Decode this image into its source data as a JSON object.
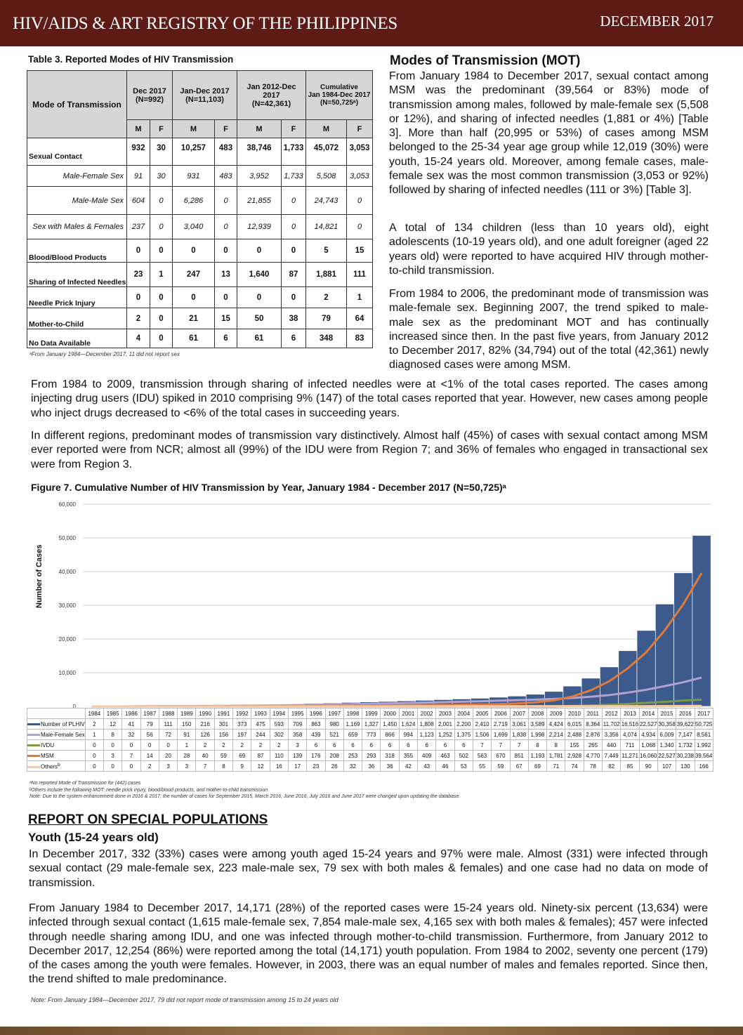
{
  "header": {
    "title": "HIV/AIDS & ART REGISTRY OF THE PHILIPPINES",
    "date": "DECEMBER 2017"
  },
  "table3": {
    "caption": "Table 3. Reported Modes of HIV Transmission",
    "col_header": "Mode of Transmission",
    "groups": [
      {
        "l1": "Dec 2017",
        "l2": "(N=992)"
      },
      {
        "l1": "Jan-Dec 2017",
        "l2": "(N=11,103)"
      },
      {
        "l1": "Jan 2012-Dec 2017",
        "l2": "(N=42,361)"
      },
      {
        "l0": "Cumulative",
        "l1": "Jan 1984-Dec 2017",
        "l2": "(N=50,725ᵃ)"
      }
    ],
    "m": "M",
    "f": "F",
    "rows": [
      {
        "label": "Sexual Contact",
        "bold": true,
        "v": [
          "932",
          "30",
          "10,257",
          "483",
          "38,746",
          "1,733",
          "45,072",
          "3,053"
        ]
      },
      {
        "label": "Male-Female Sex",
        "sub": true,
        "v": [
          "91",
          "30",
          "931",
          "483",
          "3,952",
          "1,733",
          "5,508",
          "3,053"
        ]
      },
      {
        "label": "Male-Male Sex",
        "sub": true,
        "v": [
          "604",
          "0",
          "6,286",
          "0",
          "21,855",
          "0",
          "24,743",
          "0"
        ]
      },
      {
        "label": "Sex with Males & Females",
        "sub": true,
        "v": [
          "237",
          "0",
          "3,040",
          "0",
          "12,939",
          "0",
          "14,821",
          "0"
        ]
      },
      {
        "label": "Blood/Blood Products",
        "bold": true,
        "v": [
          "0",
          "0",
          "0",
          "0",
          "0",
          "0",
          "5",
          "15"
        ]
      },
      {
        "label": "Sharing of Infected Needles",
        "bold": true,
        "v": [
          "23",
          "1",
          "247",
          "13",
          "1,640",
          "87",
          "1,881",
          "111"
        ]
      },
      {
        "label": "Needle Prick Injury",
        "bold": true,
        "v": [
          "0",
          "0",
          "0",
          "0",
          "0",
          "0",
          "2",
          "1"
        ]
      },
      {
        "label": "Mother-to-Child",
        "bold": true,
        "v": [
          "2",
          "0",
          "21",
          "15",
          "50",
          "38",
          "79",
          "64"
        ]
      },
      {
        "label": "No Data Available",
        "bold": true,
        "v": [
          "4",
          "0",
          "61",
          "6",
          "61",
          "6",
          "348",
          "83"
        ]
      }
    ],
    "footnote": "ᵃFrom January 1984—December 2017, 11 did not report sex"
  },
  "mot": {
    "title": "Modes of Transmission (MOT)",
    "p1": "From January 1984 to December 2017, sexual contact among MSM was the predominant (39,564 or 83%) mode of transmission among males, followed by male-female sex (5,508 or 12%), and sharing of infected needles (1,881 or 4%) [Table 3]. More than half (20,995 or 53%) of cases among MSM belonged to the 25-34 year age group while 12,019 (30%) were youth, 15-24 years old. Moreover, among female cases, male-female sex was the most common transmission (3,053 or 92%) followed by sharing of infected needles (111 or 3%) [Table 3].",
    "p2": "A total of 134 children (less than 10 years old), eight adolescents (10-19 years old), and one adult foreigner (aged 22 years old) were reported to have acquired HIV through mother-to-child transmission.",
    "p3": "From 1984 to 2006, the predominant mode of transmission was male-female sex. Beginning 2007, the trend spiked to male-male sex as the predominant MOT and has continually increased since then. In the past five years, from January 2012 to December 2017, 82% (34,794) out of the total (42,361) newly diagnosed cases were among MSM.",
    "p4": "From 1984 to 2009, transmission through sharing of infected needles were at <1% of the total cases reported. The cases among injecting drug users (IDU) spiked in 2010 comprising 9% (147) of the total cases reported that year. However, new cases among people who inject drugs decreased to <6% of the total cases in succeeding years.",
    "p5": "In different regions, predominant modes of transmission vary distinctively. Almost half (45%) of cases with sexual contact among MSM ever reported were from NCR; almost all (99%) of the IDU were from Region 7; and 36% of females who engaged in transactional sex were from Region 3."
  },
  "chart_data": {
    "type": "bar+line",
    "title": "Figure 7. Cumulative Number of HIV Transmission by Year, January 1984 - December 2017 (N=50,725)ᵃ",
    "ylabel": "Number of Cases",
    "ylim": [
      0,
      60000
    ],
    "yticks": [
      "0",
      "10,000",
      "20,000",
      "30,000",
      "40,000",
      "50,000",
      "60,000"
    ],
    "grid": true,
    "categories": [
      "1984",
      "1985",
      "1986",
      "1987",
      "1988",
      "1989",
      "1990",
      "1991",
      "1992",
      "1993",
      "1994",
      "1995",
      "1996",
      "1997",
      "1998",
      "1999",
      "2000",
      "2001",
      "2002",
      "2003",
      "2004",
      "2005",
      "2006",
      "2007",
      "2008",
      "2009",
      "2010",
      "2011",
      "2012",
      "2013",
      "2014",
      "2015",
      "2016",
      "2017"
    ],
    "series": [
      {
        "name": "Number of PLHIV",
        "kind": "bar",
        "color": "#3d5a8c",
        "values": [
          "2",
          "12",
          "41",
          "79",
          "111",
          "150",
          "216",
          "301",
          "373",
          "475",
          "593",
          "709",
          "863",
          "980",
          "1,169",
          "1,327",
          "1,450",
          "1,624",
          "1,808",
          "2,001",
          "2,200",
          "2,410",
          "2,719",
          "3,061",
          "3,589",
          "4,424",
          "6,015",
          "8,364",
          "11,702",
          "16,516",
          "22,527",
          "30,358",
          "39,622",
          "50,725"
        ]
      },
      {
        "name": "Male-Female Sex",
        "kind": "line",
        "color": "#b3a2cf",
        "values": [
          "1",
          "8",
          "32",
          "56",
          "72",
          "91",
          "126",
          "156",
          "197",
          "244",
          "302",
          "358",
          "439",
          "521",
          "659",
          "773",
          "866",
          "994",
          "1,123",
          "1,252",
          "1,375",
          "1,506",
          "1,699",
          "1,838",
          "1,998",
          "2,214",
          "2,488",
          "2,876",
          "3,356",
          "4,074",
          "4,934",
          "6,009",
          "7,147",
          "8,561"
        ]
      },
      {
        "name": "IVDU",
        "kind": "line",
        "color": "#7d9a46",
        "values": [
          "0",
          "0",
          "0",
          "0",
          "0",
          "1",
          "2",
          "2",
          "2",
          "2",
          "2",
          "3",
          "6",
          "6",
          "6",
          "6",
          "6",
          "6",
          "6",
          "6",
          "6",
          "7",
          "7",
          "7",
          "8",
          "8",
          "155",
          "265",
          "440",
          "711",
          "1,068",
          "1,340",
          "1,732",
          "1,992"
        ]
      },
      {
        "name": "MSM",
        "kind": "line",
        "color": "#e07a3a",
        "values": [
          "0",
          "3",
          "7",
          "14",
          "20",
          "28",
          "40",
          "59",
          "69",
          "87",
          "110",
          "139",
          "176",
          "208",
          "253",
          "293",
          "318",
          "355",
          "409",
          "463",
          "502",
          "563",
          "670",
          "851",
          "1,193",
          "1,781",
          "2,928",
          "4,770",
          "7,449",
          "11,271",
          "16,060",
          "22,527",
          "30,238",
          "39,564"
        ]
      },
      {
        "name": "Others",
        "sup": "b",
        "kind": "line",
        "color": "#f5c9a5",
        "values": [
          "0",
          "0",
          "0",
          "2",
          "3",
          "3",
          "7",
          "8",
          "9",
          "12",
          "16",
          "17",
          "23",
          "26",
          "32",
          "36",
          "36",
          "42",
          "43",
          "46",
          "53",
          "55",
          "59",
          "67",
          "69",
          "71",
          "74",
          "78",
          "82",
          "85",
          "90",
          "107",
          "130",
          "166"
        ]
      }
    ],
    "notes": [
      "ᵃNo reported Mode of Transmission for (442) cases",
      "ᵇOthers include the following MOT: needle prick injury, blood/blood products, and mother-to-child transmission",
      "Note: Due to the system enhancement done in 2016 & 2017, the number of cases for September 2015, March 2016, June 2016, July 2016 and June 2017 were changed upon updating the database."
    ]
  },
  "special": {
    "title": "REPORT ON SPECIAL POPULATIONS",
    "youth_title": "Youth (15-24 years old)",
    "p1": "In December 2017, 332 (33%) cases were among youth aged 15-24 years and 97% were male. Almost (331) were infected through sexual contact (29 male-female sex, 223 male-male sex, 79 sex with both males & females) and one case had no data on mode of transmission.",
    "p2": "From January 1984 to December 2017, 14,171 (28%) of the reported cases were 15-24 years old. Ninety-six percent (13,634) were infected through sexual contact (1,615 male-female sex, 7,854 male-male sex, 4,165 sex with both males & females); 457 were infected through needle sharing among IDU, and one was infected through mother-to-child transmission. Furthermore, from January 2012 to December 2017, 12,254 (86%) were reported among the total (14,171) youth population. From 1984 to 2002, seventy one percent (179) of the cases among the youth were females. However, in 2003, there was an equal number of males and females reported. Since then, the trend shifted to male predominance.",
    "note": "Note:  From January 1984—December 2017, 79 did not report mode of transmission among  15 to 24 years old"
  }
}
